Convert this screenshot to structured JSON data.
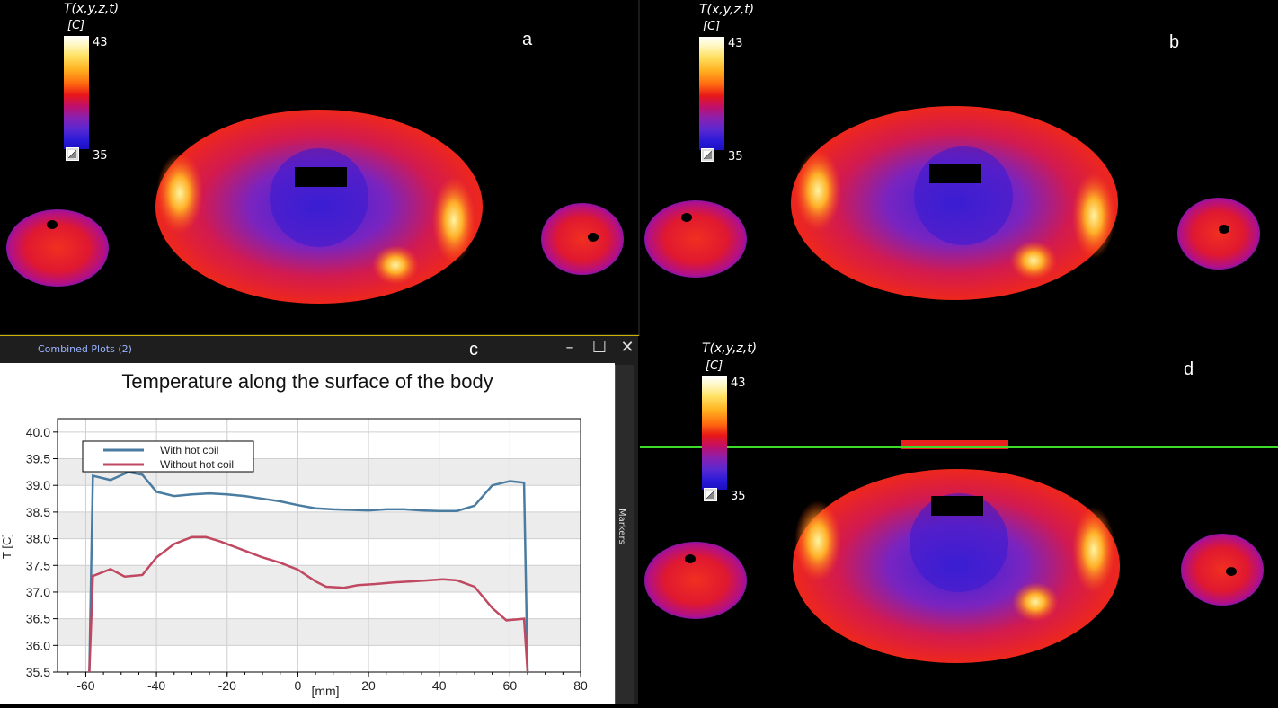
{
  "panels": {
    "a": {
      "letter": "a",
      "legend_title": "T(x,y,z,t)",
      "legend_unit": "[C]",
      "max": "43",
      "min": "35"
    },
    "b": {
      "letter": "b",
      "legend_title": "T(x,y,z,t)",
      "legend_unit": "[C]",
      "max": "43",
      "min": "35"
    },
    "d": {
      "letter": "d",
      "legend_title": "T(x,y,z,t)",
      "legend_unit": "[C]",
      "max": "43",
      "min": "35"
    }
  },
  "plot_window": {
    "title": "Combined Plots (2)",
    "letter": "c",
    "minimize": "–",
    "maximize": "☐",
    "close": "✕",
    "markers_label": "Markers"
  },
  "colors": {
    "with_coil": "#4a7ba0",
    "without_coil": "#c04860",
    "green_line": "#3ddc2a"
  },
  "chart_data": {
    "type": "line",
    "title": "Temperature along the surface of the body",
    "xlabel": "[mm]",
    "ylabel": "T [C]",
    "xlim": [
      -68,
      80
    ],
    "ylim": [
      35.5,
      40.25
    ],
    "xticks": [
      "-60",
      "-40",
      "-20",
      "0",
      "20",
      "40",
      "60",
      "80"
    ],
    "yticks": [
      "35.5",
      "36.0",
      "36.5",
      "37.0",
      "37.5",
      "38.0",
      "38.5",
      "39.0",
      "39.5",
      "40.0"
    ],
    "legend_position": "top-left",
    "series": [
      {
        "name": "With hot coil",
        "x": [
          -59,
          -58,
          -53,
          -48,
          -44,
          -40,
          -35,
          -30,
          -25,
          -20,
          -15,
          -10,
          -5,
          0,
          5,
          10,
          15,
          20,
          25,
          30,
          35,
          40,
          45,
          50,
          55,
          60,
          64,
          65
        ],
        "y": [
          35.5,
          39.18,
          39.1,
          39.25,
          39.2,
          38.88,
          38.8,
          38.83,
          38.85,
          38.83,
          38.8,
          38.75,
          38.7,
          38.63,
          38.57,
          38.55,
          38.54,
          38.53,
          38.55,
          38.55,
          38.53,
          38.52,
          38.52,
          38.62,
          39.0,
          39.08,
          39.05,
          35.5
        ]
      },
      {
        "name": "Without hot coil",
        "x": [
          -59,
          -58,
          -53,
          -49,
          -44,
          -40,
          -35,
          -30,
          -26,
          -22,
          -18,
          -14,
          -10,
          -5,
          0,
          5,
          8,
          13,
          17,
          22,
          27,
          32,
          37,
          41,
          45,
          50,
          55,
          59,
          64,
          65
        ],
        "y": [
          35.5,
          37.3,
          37.43,
          37.29,
          37.32,
          37.65,
          37.9,
          38.03,
          38.03,
          37.95,
          37.85,
          37.75,
          37.65,
          37.55,
          37.42,
          37.2,
          37.1,
          37.08,
          37.13,
          37.15,
          37.18,
          37.2,
          37.22,
          37.24,
          37.22,
          37.1,
          36.7,
          36.47,
          36.5,
          35.5
        ]
      }
    ]
  }
}
